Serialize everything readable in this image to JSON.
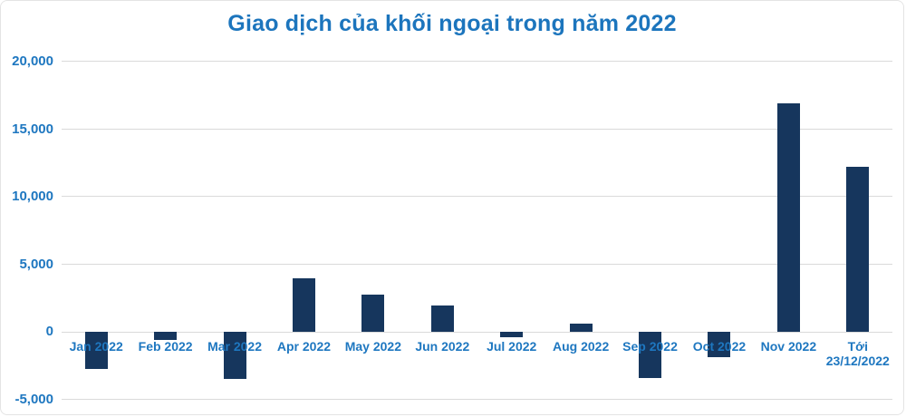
{
  "title": "Giao dịch của khối ngoại trong năm 2022",
  "colors": {
    "title_text": "#1c75bd",
    "axis_label_text": "#1e77c0",
    "bar": "#16365d",
    "gridline": "#dadada",
    "background": "#ffffff",
    "frame_border": "#e4e4e4"
  },
  "chart_data": {
    "type": "bar",
    "title": "Giao dịch của khối ngoại trong năm 2022",
    "categories": [
      "Jan 2022",
      "Feb 2022",
      "Mar 2022",
      "Apr 2022",
      "May 2022",
      "Jun 2022",
      "Jul 2022",
      "Aug 2022",
      "Sep 2022",
      "Oct 2022",
      "Nov 2022",
      "Tới\n23/12/2022"
    ],
    "values": [
      -2750,
      -550,
      -3450,
      4000,
      2750,
      1950,
      -400,
      600,
      -3400,
      -1850,
      16950,
      12250
    ],
    "xlabel": "",
    "ylabel": "",
    "ylim": [
      -5000,
      20000
    ],
    "y_ticks": [
      20000,
      15000,
      10000,
      5000,
      0,
      -5000
    ],
    "y_tick_labels": [
      "20,000",
      "15,000",
      "10,000",
      "5,000",
      "0",
      "-5,000"
    ],
    "grid": true,
    "legend_position": "none",
    "bar_color": "#16365d"
  }
}
